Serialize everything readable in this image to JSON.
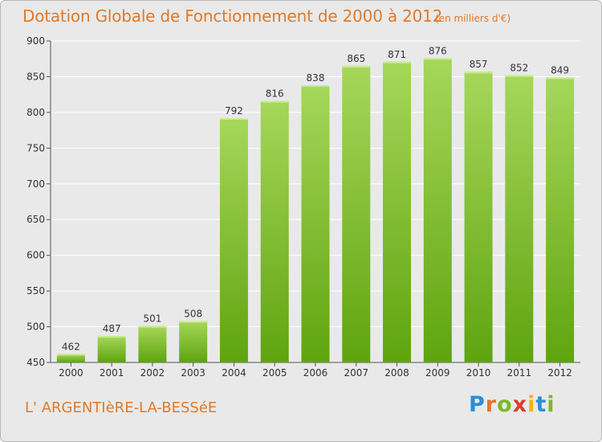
{
  "header": {
    "title": "Dotation Globale de Fonctionnement de 2000 à 2012",
    "units": "(en milliers d'€)"
  },
  "footer": {
    "town": "L' ARGENTIèRE-LA-BESSéE",
    "brand": "Proxiti",
    "brand_letters": [
      {
        "ch": "P",
        "color": "#2b8fd6"
      },
      {
        "ch": "r",
        "color": "#e8732a"
      },
      {
        "ch": "o",
        "color": "#7ab929"
      },
      {
        "ch": "x",
        "color": "#d93f2b"
      },
      {
        "ch": "i",
        "color": "#f2b705"
      },
      {
        "ch": "t",
        "color": "#2b8fd6"
      },
      {
        "ch": "i",
        "color": "#7ab929"
      }
    ]
  },
  "colors": {
    "bar_light": "#a6d75a",
    "bar_dark": "#5fa40f",
    "accent": "#e07a2a",
    "grid": "#ffffff",
    "plot_bg": "#e9e9e9"
  },
  "chart_data": {
    "type": "bar",
    "categories": [
      "2000",
      "2001",
      "2002",
      "2003",
      "2004",
      "2005",
      "2006",
      "2007",
      "2008",
      "2009",
      "2010",
      "2011",
      "2012"
    ],
    "values": [
      462,
      487,
      501,
      508,
      792,
      816,
      838,
      865,
      871,
      876,
      857,
      852,
      849
    ],
    "ylim": [
      450,
      900
    ],
    "yticks": [
      450,
      500,
      550,
      600,
      650,
      700,
      750,
      800,
      850,
      900
    ],
    "grid": true,
    "xlabel": "",
    "ylabel": ""
  }
}
